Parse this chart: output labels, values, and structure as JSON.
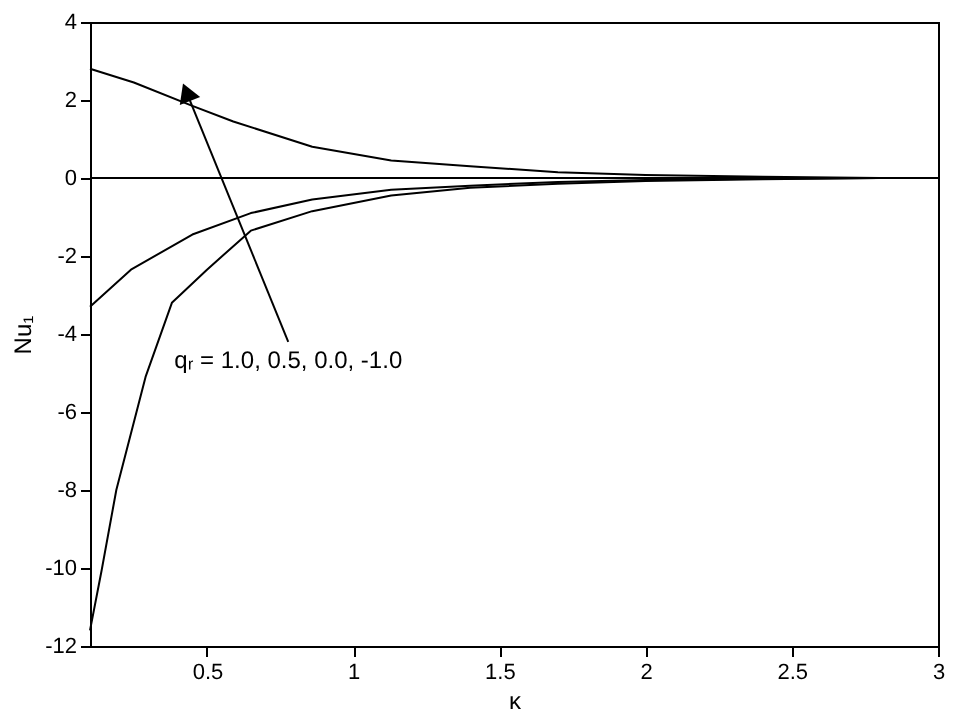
{
  "chart_data": {
    "type": "line",
    "xlabel": "κ",
    "ylabel": "Nu₁",
    "xlim": [
      0.1,
      3
    ],
    "xticks": [
      0.5,
      1,
      1.5,
      2,
      2.5,
      3
    ],
    "ylim": [
      -12,
      4
    ],
    "yticks": [
      -12,
      -10,
      -8,
      -6,
      -4,
      -2,
      0,
      2,
      4
    ],
    "grid": false,
    "marker": "none",
    "line_style": "solid",
    "ref_lines": [
      {
        "axis": "y",
        "value": 0,
        "color": "#000000"
      }
    ],
    "annotations": [
      {
        "text": "qᵣ = 1.0, 0.5, 0.0, -1.0",
        "x": 0.43,
        "y": 2.2
      }
    ],
    "series": [
      {
        "color": "#000000",
        "x": [
          0.1,
          0.25,
          0.45,
          0.59,
          0.86,
          1.13,
          1.4,
          1.7,
          2.0,
          2.4,
          2.8
        ],
        "values": [
          2.8,
          2.45,
          1.85,
          1.45,
          0.8,
          0.45,
          0.3,
          0.15,
          0.08,
          0.03,
          0.0
        ]
      },
      {
        "color": "#000000",
        "x": [
          0.1,
          0.24,
          0.45,
          0.65,
          0.86,
          1.13,
          1.4,
          1.7,
          2.0,
          2.4,
          2.8
        ],
        "values": [
          -3.3,
          -2.35,
          -1.45,
          -0.9,
          -0.55,
          -0.3,
          -0.2,
          -0.1,
          -0.05,
          -0.02,
          0.0
        ]
      },
      {
        "color": "#000000",
        "x": [
          0.1,
          0.14,
          0.19,
          0.29,
          0.38,
          0.5,
          0.65,
          0.86,
          1.13,
          1.4,
          1.7,
          2.0,
          2.4,
          2.8
        ],
        "values": [
          -11.6,
          -10.05,
          -8.0,
          -5.1,
          -3.2,
          -2.35,
          -1.35,
          -0.85,
          -0.45,
          -0.25,
          -0.15,
          -0.08,
          -0.03,
          0.0
        ]
      }
    ]
  }
}
